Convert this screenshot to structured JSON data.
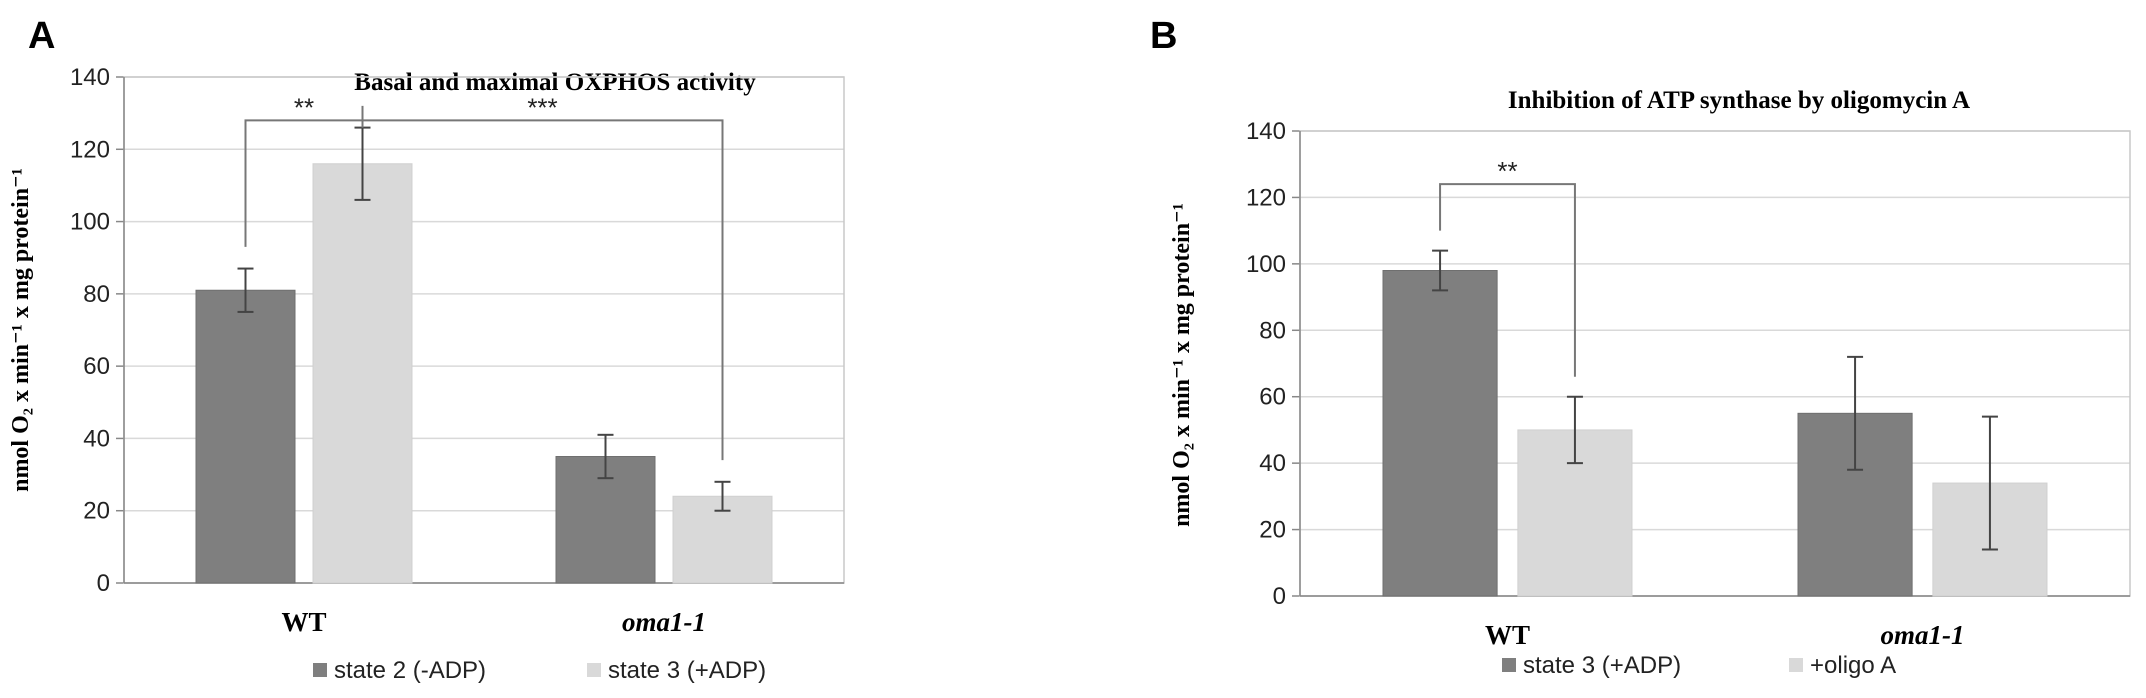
{
  "panels": [
    {
      "letter": "A",
      "y_title": "nmol O₂ x min⁻¹ x mg protein⁻¹",
      "chart_data": {
        "type": "bar",
        "title": "Basal and maximal OXPHOS activity",
        "categories": [
          "WT",
          "oma1-1"
        ],
        "category_italic": [
          false,
          true
        ],
        "ylim": [
          0,
          140
        ],
        "yticks": [
          0,
          20,
          40,
          60,
          80,
          100,
          120,
          140
        ],
        "grid": true,
        "legend": "bottom",
        "series": [
          {
            "name": "state 2 (-ADP)",
            "color": "#7f7f7f",
            "values": [
              81,
              35
            ],
            "errors": [
              6,
              6
            ]
          },
          {
            "name": "state 3 (+ADP)",
            "color": "#d9d9d9",
            "values": [
              116,
              24
            ],
            "errors": [
              10,
              4
            ]
          }
        ],
        "significance": [
          {
            "label": "**",
            "from": [
              0,
              0
            ],
            "to": [
              0,
              1
            ]
          },
          {
            "label": "***",
            "from": [
              0,
              1
            ],
            "to": [
              1,
              1
            ]
          }
        ]
      }
    },
    {
      "letter": "B",
      "y_title": "nmol O₂ x min⁻¹ x mg protein⁻¹",
      "chart_data": {
        "type": "bar",
        "title": "Inhibition of ATP synthase by oligomycin A",
        "categories": [
          "WT",
          "oma1-1"
        ],
        "category_italic": [
          false,
          true
        ],
        "ylim": [
          0,
          140
        ],
        "yticks": [
          0,
          20,
          40,
          60,
          80,
          100,
          120,
          140
        ],
        "grid": true,
        "legend": "bottom",
        "series": [
          {
            "name": "state 3 (+ADP)",
            "color": "#7f7f7f",
            "values": [
              98,
              55
            ],
            "errors": [
              6,
              17
            ]
          },
          {
            "name": "+oligo A",
            "color": "#d9d9d9",
            "values": [
              50,
              34
            ],
            "errors": [
              10,
              20
            ]
          }
        ],
        "significance": [
          {
            "label": "**",
            "from": [
              0,
              0
            ],
            "to": [
              0,
              1
            ]
          }
        ]
      }
    }
  ]
}
